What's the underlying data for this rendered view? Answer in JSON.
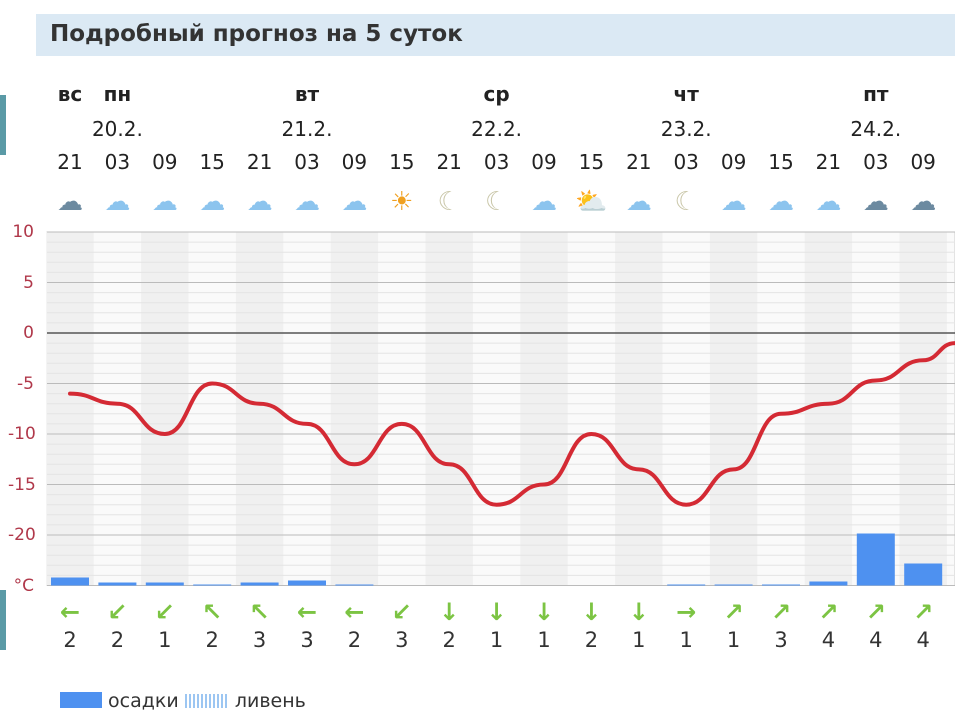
{
  "title": "Подробный прогноз на 5 суток",
  "days": [
    {
      "col": 0,
      "label": "вс"
    },
    {
      "col": 1,
      "label": "пн",
      "date": "20.2."
    },
    {
      "col": 5,
      "label": "вт",
      "date": "21.2."
    },
    {
      "col": 9,
      "label": "ср",
      "date": "22.2."
    },
    {
      "col": 13,
      "label": "чт",
      "date": "23.2."
    },
    {
      "col": 17,
      "label": "пт",
      "date": "24.2."
    }
  ],
  "hours": [
    "21",
    "03",
    "09",
    "15",
    "21",
    "03",
    "09",
    "15",
    "21",
    "03",
    "09",
    "15",
    "21",
    "03",
    "09",
    "15",
    "21",
    "03",
    "09"
  ],
  "icons": [
    "snow-cloud",
    "cloud",
    "cloud",
    "cloud",
    "cloud",
    "cloud",
    "cloud",
    "sun",
    "moon",
    "moon",
    "cloud",
    "sun-cloud",
    "cloud",
    "moon",
    "cloud",
    "cloud",
    "cloud",
    "snow-cloud",
    "snow-cloud"
  ],
  "wind_dirs": [
    "W",
    "SW",
    "SW",
    "NW",
    "NW",
    "W",
    "W",
    "SW",
    "S",
    "S",
    "S",
    "S",
    "S",
    "E",
    "NE",
    "NE",
    "NE",
    "NE",
    "NE"
  ],
  "wind_speeds": [
    "2",
    "2",
    "1",
    "2",
    "3",
    "3",
    "2",
    "3",
    "2",
    "1",
    "1",
    "2",
    "1",
    "1",
    "1",
    "3",
    "4",
    "4",
    "4"
  ],
  "legend": {
    "precip": "осадки",
    "shower": "ливень"
  },
  "chart_data": {
    "type": "line",
    "ylabel": "°C",
    "ylim": [
      -25,
      10
    ],
    "yticks": [
      "10",
      "5",
      "0",
      "-5",
      "-10",
      "-15",
      "-20"
    ],
    "unit_label": "°C",
    "x": [
      "21",
      "03",
      "09",
      "15",
      "21",
      "03",
      "09",
      "15",
      "21",
      "03",
      "09",
      "15",
      "21",
      "03",
      "09",
      "15",
      "21",
      "03",
      "09"
    ],
    "series": [
      {
        "name": "temperature",
        "color": "#d42a34",
        "values": [
          -6,
          -7,
          -10,
          -5,
          -7,
          -9,
          -13,
          -9,
          -13,
          -17,
          -15,
          -10,
          -13.5,
          -17,
          -13.5,
          -8,
          -7,
          -4.7,
          -2.7
        ],
        "end_value": -1
      },
      {
        "name": "осадки",
        "type": "bar",
        "color": "#4e91f0",
        "values": [
          0.8,
          0.3,
          0.3,
          0.1,
          0.3,
          0.5,
          0.1,
          0,
          0,
          0,
          0,
          0,
          0,
          0.1,
          0.1,
          0.1,
          0.4,
          5.2,
          2.2
        ]
      }
    ]
  }
}
